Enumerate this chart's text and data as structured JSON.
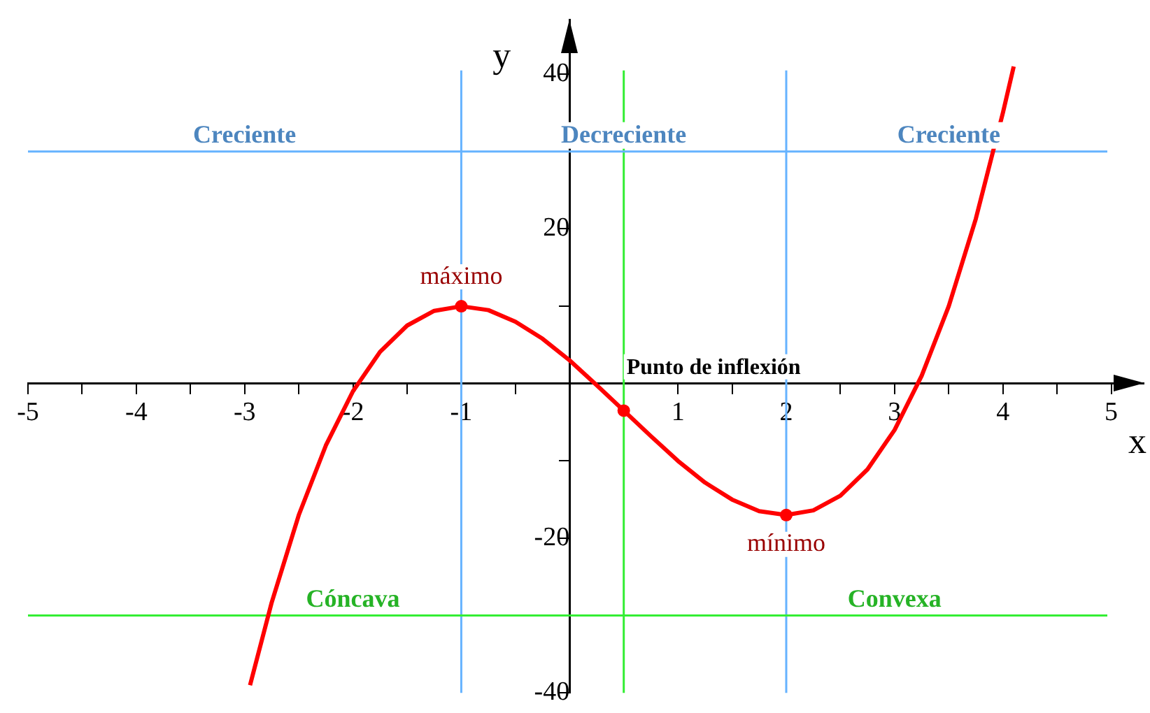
{
  "chart_data": {
    "type": "line",
    "xlabel": "x",
    "ylabel": "y",
    "xlim": [
      -5,
      5.3
    ],
    "ylim": [
      -40,
      47
    ],
    "xticks": [
      -5,
      {
        "value": -4.5,
        "label": null
      },
      -4,
      {
        "value": -3.5,
        "label": null
      },
      -3,
      {
        "value": -2.5,
        "label": null
      },
      -2,
      {
        "value": -1.5,
        "label": null
      },
      -1,
      {
        "value": -0.5,
        "label": null
      },
      {
        "value": 0,
        "label": null
      },
      {
        "value": 0.5,
        "label": null
      },
      1,
      {
        "value": 1.5,
        "label": null
      },
      2,
      {
        "value": 2.5,
        "label": null
      },
      3,
      {
        "value": 3.5,
        "label": null
      },
      4,
      {
        "value": 4.5,
        "label": null
      },
      5
    ],
    "yticks": [
      -40,
      {
        "value": -30,
        "label": null
      },
      -20,
      {
        "value": -10,
        "label": null
      },
      {
        "value": 0,
        "label": null
      },
      {
        "value": 10,
        "label": null
      },
      20,
      {
        "value": 30,
        "label": null
      },
      40
    ],
    "grid": false,
    "legend": false,
    "series": [
      {
        "color": "#ff0000",
        "marker": "none",
        "x": [
          -2.95,
          -2.75,
          -2.5,
          -2.25,
          -2,
          -1.75,
          -1.5,
          -1.25,
          -1,
          -0.75,
          -0.5,
          -0.25,
          0,
          0.25,
          0.5,
          0.75,
          1,
          1.25,
          1.5,
          1.75,
          2,
          2.25,
          2.5,
          2.75,
          3,
          3.25,
          3.5,
          3.75,
          4,
          4.1
        ],
        "values": [
          -39,
          -28.3,
          -17,
          -8,
          -1,
          4.1,
          7.5,
          9.4,
          10,
          9.5,
          8,
          5.8,
          3,
          -0.2,
          -3.5,
          -6.8,
          -10,
          -12.8,
          -15,
          -16.5,
          -17,
          -16.4,
          -14.5,
          -11.1,
          -6,
          1,
          10,
          21.3,
          35,
          41
        ]
      },
      {
        "type": "scatter",
        "color": "#ff0000",
        "marker": "circle",
        "x": [
          -1,
          0.5,
          2
        ],
        "values": [
          10,
          -3.5,
          -17
        ]
      }
    ],
    "ref_lines": [
      {
        "axis": "x",
        "value": -1,
        "color": "#66b3ff"
      },
      {
        "axis": "x",
        "value": 2,
        "color": "#66b3ff"
      },
      {
        "axis": "x",
        "value": 0.5,
        "color": "#33ee33"
      },
      {
        "axis": "y",
        "value": 30,
        "color": "#66b3ff"
      },
      {
        "axis": "y",
        "value": -30,
        "color": "#33ee33"
      }
    ],
    "annotations": [
      {
        "text": "Creciente",
        "x": -3,
        "y": 30
      },
      {
        "text": "Decreciente",
        "x": 0.5,
        "y": 30
      },
      {
        "text": "Creciente",
        "x": 3.5,
        "y": 30
      },
      {
        "text": "Cóncava",
        "x": -2,
        "y": -30
      },
      {
        "text": "Convexa",
        "x": 3,
        "y": -30
      },
      {
        "text": "máximo",
        "x": -1,
        "y": 10
      },
      {
        "text": "mínimo",
        "x": 2,
        "y": -17
      },
      {
        "text": "Punto de inflexión",
        "x": 0.5,
        "y": -3.5
      }
    ]
  }
}
